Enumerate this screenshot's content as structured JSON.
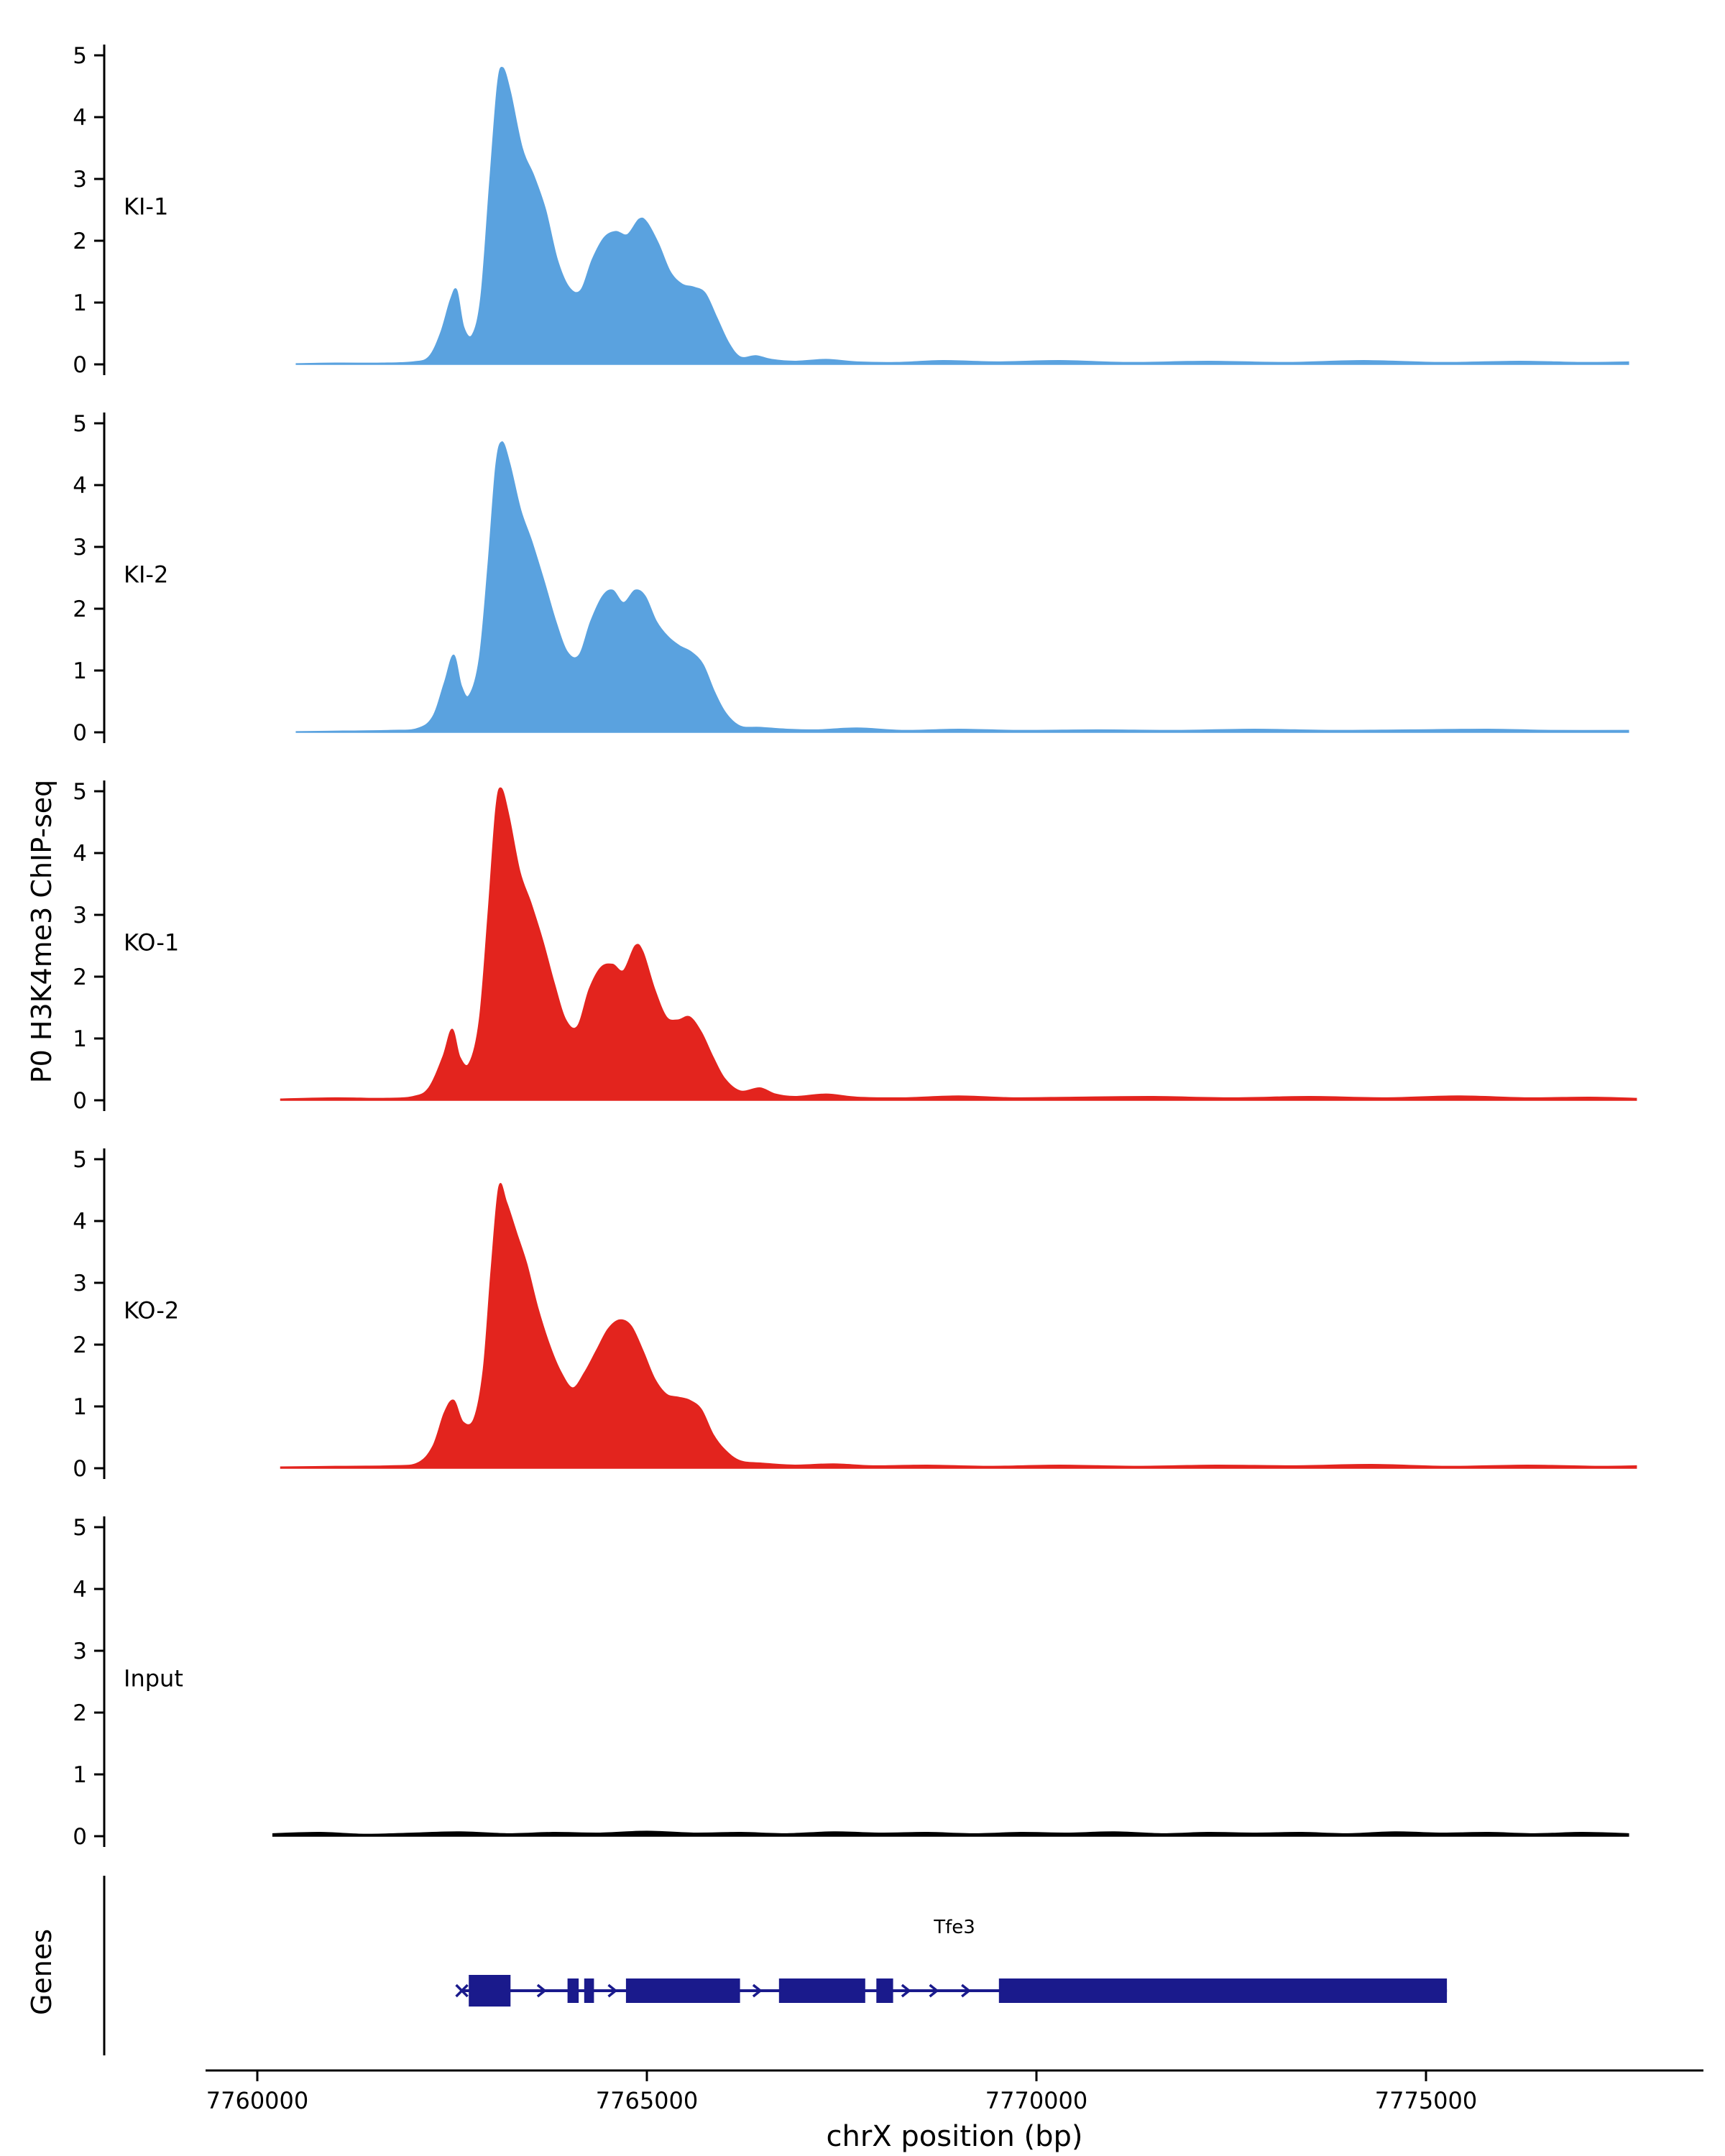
{
  "chart_data": {
    "type": "area",
    "title": "",
    "ylabel": "P0 H3K4me3 ChIP-seq",
    "xlabel": "chrX position (bp)",
    "y_ticks": [
      0,
      1,
      2,
      3,
      4,
      5
    ],
    "y_range": [
      0,
      5.3
    ],
    "x_ticks": [
      7760000,
      7765000,
      7770000,
      7775000
    ],
    "x_range": [
      7759300,
      7778560
    ],
    "grid": false,
    "legend": "none",
    "tracks": [
      {
        "label": "KI-1",
        "color": "#5aa2df",
        "points": [
          [
            7760500,
            0.01
          ],
          [
            7761000,
            0.02
          ],
          [
            7761600,
            0.02
          ],
          [
            7762000,
            0.04
          ],
          [
            7762200,
            0.12
          ],
          [
            7762350,
            0.5
          ],
          [
            7762480,
            1.05
          ],
          [
            7762560,
            1.2
          ],
          [
            7762650,
            0.6
          ],
          [
            7762760,
            0.48
          ],
          [
            7762870,
            1.1
          ],
          [
            7762980,
            2.9
          ],
          [
            7763080,
            4.5
          ],
          [
            7763150,
            4.8
          ],
          [
            7763250,
            4.4
          ],
          [
            7763400,
            3.5
          ],
          [
            7763550,
            3.05
          ],
          [
            7763700,
            2.5
          ],
          [
            7763850,
            1.7
          ],
          [
            7764000,
            1.25
          ],
          [
            7764150,
            1.2
          ],
          [
            7764300,
            1.7
          ],
          [
            7764450,
            2.05
          ],
          [
            7764600,
            2.15
          ],
          [
            7764750,
            2.1
          ],
          [
            7764900,
            2.35
          ],
          [
            7765000,
            2.3
          ],
          [
            7765150,
            1.95
          ],
          [
            7765300,
            1.5
          ],
          [
            7765450,
            1.3
          ],
          [
            7765600,
            1.25
          ],
          [
            7765750,
            1.15
          ],
          [
            7765900,
            0.75
          ],
          [
            7766050,
            0.35
          ],
          [
            7766200,
            0.12
          ],
          [
            7766400,
            0.14
          ],
          [
            7766600,
            0.08
          ],
          [
            7766900,
            0.05
          ],
          [
            7767300,
            0.08
          ],
          [
            7767700,
            0.04
          ],
          [
            7768200,
            0.03
          ],
          [
            7768800,
            0.06
          ],
          [
            7769500,
            0.04
          ],
          [
            7770300,
            0.06
          ],
          [
            7771200,
            0.03
          ],
          [
            7772200,
            0.05
          ],
          [
            7773200,
            0.03
          ],
          [
            7774200,
            0.06
          ],
          [
            7775200,
            0.03
          ],
          [
            7776200,
            0.05
          ],
          [
            7777000,
            0.03
          ],
          [
            7777600,
            0.04
          ]
        ]
      },
      {
        "label": "KI-2",
        "color": "#5aa2df",
        "points": [
          [
            7760500,
            0.01
          ],
          [
            7761100,
            0.02
          ],
          [
            7761700,
            0.03
          ],
          [
            7762050,
            0.06
          ],
          [
            7762250,
            0.25
          ],
          [
            7762400,
            0.8
          ],
          [
            7762520,
            1.25
          ],
          [
            7762620,
            0.75
          ],
          [
            7762720,
            0.6
          ],
          [
            7762850,
            1.2
          ],
          [
            7762960,
            2.7
          ],
          [
            7763060,
            4.3
          ],
          [
            7763140,
            4.7
          ],
          [
            7763240,
            4.35
          ],
          [
            7763380,
            3.6
          ],
          [
            7763520,
            3.1
          ],
          [
            7763680,
            2.45
          ],
          [
            7763830,
            1.8
          ],
          [
            7763980,
            1.3
          ],
          [
            7764130,
            1.25
          ],
          [
            7764280,
            1.8
          ],
          [
            7764430,
            2.2
          ],
          [
            7764560,
            2.3
          ],
          [
            7764700,
            2.1
          ],
          [
            7764850,
            2.3
          ],
          [
            7764980,
            2.2
          ],
          [
            7765120,
            1.8
          ],
          [
            7765270,
            1.55
          ],
          [
            7765420,
            1.4
          ],
          [
            7765570,
            1.3
          ],
          [
            7765720,
            1.1
          ],
          [
            7765870,
            0.65
          ],
          [
            7766020,
            0.3
          ],
          [
            7766200,
            0.1
          ],
          [
            7766450,
            0.08
          ],
          [
            7766800,
            0.05
          ],
          [
            7767200,
            0.04
          ],
          [
            7767700,
            0.07
          ],
          [
            7768300,
            0.03
          ],
          [
            7769000,
            0.05
          ],
          [
            7769800,
            0.03
          ],
          [
            7770800,
            0.04
          ],
          [
            7771800,
            0.03
          ],
          [
            7772800,
            0.05
          ],
          [
            7773800,
            0.03
          ],
          [
            7774800,
            0.04
          ],
          [
            7775800,
            0.05
          ],
          [
            7776600,
            0.03
          ],
          [
            7777600,
            0.03
          ]
        ]
      },
      {
        "label": "KO-1",
        "color": "#e3241e",
        "points": [
          [
            7760300,
            0.02
          ],
          [
            7761000,
            0.04
          ],
          [
            7761600,
            0.03
          ],
          [
            7762000,
            0.06
          ],
          [
            7762200,
            0.2
          ],
          [
            7762380,
            0.7
          ],
          [
            7762500,
            1.15
          ],
          [
            7762600,
            0.7
          ],
          [
            7762720,
            0.6
          ],
          [
            7762850,
            1.3
          ],
          [
            7762960,
            3.0
          ],
          [
            7763060,
            4.7
          ],
          [
            7763130,
            5.05
          ],
          [
            7763230,
            4.6
          ],
          [
            7763370,
            3.7
          ],
          [
            7763510,
            3.2
          ],
          [
            7763660,
            2.6
          ],
          [
            7763810,
            1.9
          ],
          [
            7763960,
            1.3
          ],
          [
            7764110,
            1.2
          ],
          [
            7764260,
            1.8
          ],
          [
            7764410,
            2.15
          ],
          [
            7764560,
            2.2
          ],
          [
            7764700,
            2.1
          ],
          [
            7764850,
            2.5
          ],
          [
            7764950,
            2.4
          ],
          [
            7765100,
            1.8
          ],
          [
            7765250,
            1.35
          ],
          [
            7765400,
            1.3
          ],
          [
            7765550,
            1.35
          ],
          [
            7765700,
            1.1
          ],
          [
            7765850,
            0.7
          ],
          [
            7766000,
            0.35
          ],
          [
            7766200,
            0.15
          ],
          [
            7766450,
            0.2
          ],
          [
            7766650,
            0.1
          ],
          [
            7766900,
            0.06
          ],
          [
            7767300,
            0.1
          ],
          [
            7767700,
            0.05
          ],
          [
            7768300,
            0.04
          ],
          [
            7769000,
            0.07
          ],
          [
            7769700,
            0.04
          ],
          [
            7770500,
            0.05
          ],
          [
            7771500,
            0.06
          ],
          [
            7772500,
            0.04
          ],
          [
            7773500,
            0.06
          ],
          [
            7774500,
            0.04
          ],
          [
            7775400,
            0.07
          ],
          [
            7776300,
            0.04
          ],
          [
            7777100,
            0.05
          ],
          [
            7777700,
            0.03
          ]
        ]
      },
      {
        "label": "KO-2",
        "color": "#e3241e",
        "points": [
          [
            7760300,
            0.02
          ],
          [
            7761000,
            0.03
          ],
          [
            7761700,
            0.04
          ],
          [
            7762050,
            0.08
          ],
          [
            7762250,
            0.35
          ],
          [
            7762400,
            0.9
          ],
          [
            7762520,
            1.1
          ],
          [
            7762640,
            0.75
          ],
          [
            7762780,
            0.8
          ],
          [
            7762900,
            1.6
          ],
          [
            7763000,
            3.2
          ],
          [
            7763100,
            4.55
          ],
          [
            7763200,
            4.3
          ],
          [
            7763330,
            3.8
          ],
          [
            7763460,
            3.3
          ],
          [
            7763600,
            2.6
          ],
          [
            7763750,
            2.0
          ],
          [
            7763900,
            1.55
          ],
          [
            7764050,
            1.3
          ],
          [
            7764200,
            1.55
          ],
          [
            7764350,
            1.9
          ],
          [
            7764500,
            2.25
          ],
          [
            7764650,
            2.4
          ],
          [
            7764800,
            2.3
          ],
          [
            7764950,
            1.9
          ],
          [
            7765100,
            1.45
          ],
          [
            7765250,
            1.2
          ],
          [
            7765400,
            1.15
          ],
          [
            7765550,
            1.1
          ],
          [
            7765700,
            0.95
          ],
          [
            7765850,
            0.55
          ],
          [
            7766000,
            0.3
          ],
          [
            7766200,
            0.12
          ],
          [
            7766500,
            0.08
          ],
          [
            7766900,
            0.05
          ],
          [
            7767400,
            0.07
          ],
          [
            7767900,
            0.04
          ],
          [
            7768600,
            0.05
          ],
          [
            7769400,
            0.03
          ],
          [
            7770300,
            0.05
          ],
          [
            7771300,
            0.03
          ],
          [
            7772300,
            0.05
          ],
          [
            7773300,
            0.04
          ],
          [
            7774300,
            0.06
          ],
          [
            7775300,
            0.03
          ],
          [
            7776300,
            0.05
          ],
          [
            7777200,
            0.03
          ],
          [
            7777700,
            0.04
          ]
        ]
      },
      {
        "label": "Input",
        "color": "#000000",
        "points": [
          [
            7760200,
            0.04
          ],
          [
            7760800,
            0.06
          ],
          [
            7761400,
            0.03
          ],
          [
            7762000,
            0.05
          ],
          [
            7762600,
            0.07
          ],
          [
            7763200,
            0.04
          ],
          [
            7763800,
            0.06
          ],
          [
            7764400,
            0.05
          ],
          [
            7765000,
            0.08
          ],
          [
            7765600,
            0.05
          ],
          [
            7766200,
            0.06
          ],
          [
            7766800,
            0.04
          ],
          [
            7767400,
            0.07
          ],
          [
            7768000,
            0.05
          ],
          [
            7768600,
            0.06
          ],
          [
            7769200,
            0.04
          ],
          [
            7769800,
            0.06
          ],
          [
            7770400,
            0.05
          ],
          [
            7771000,
            0.07
          ],
          [
            7771600,
            0.04
          ],
          [
            7772200,
            0.06
          ],
          [
            7772800,
            0.05
          ],
          [
            7773400,
            0.06
          ],
          [
            7774000,
            0.04
          ],
          [
            7774600,
            0.07
          ],
          [
            7775200,
            0.05
          ],
          [
            7775800,
            0.06
          ],
          [
            7776400,
            0.04
          ],
          [
            7777000,
            0.06
          ],
          [
            7777600,
            0.04
          ]
        ]
      }
    ],
    "genes_panel": {
      "label": "Genes",
      "gene": {
        "name": "Tfe3",
        "start": 7762625,
        "end": 7775268,
        "color": "#1a1a8c",
        "arrow_direction": "right",
        "exons": [
          [
            7762714,
            7763250,
            44
          ],
          [
            7763982,
            7764125,
            34
          ],
          [
            7764196,
            7764321,
            34
          ],
          [
            7764732,
            7766196,
            34
          ],
          [
            7766696,
            7767803,
            34
          ],
          [
            7767946,
            7768161,
            34
          ],
          [
            7769518,
            7775268,
            34
          ]
        ],
        "intron_arrows": [
          7763661,
          7764571,
          7766429,
          7768339,
          7768696,
          7769107
        ]
      }
    }
  }
}
